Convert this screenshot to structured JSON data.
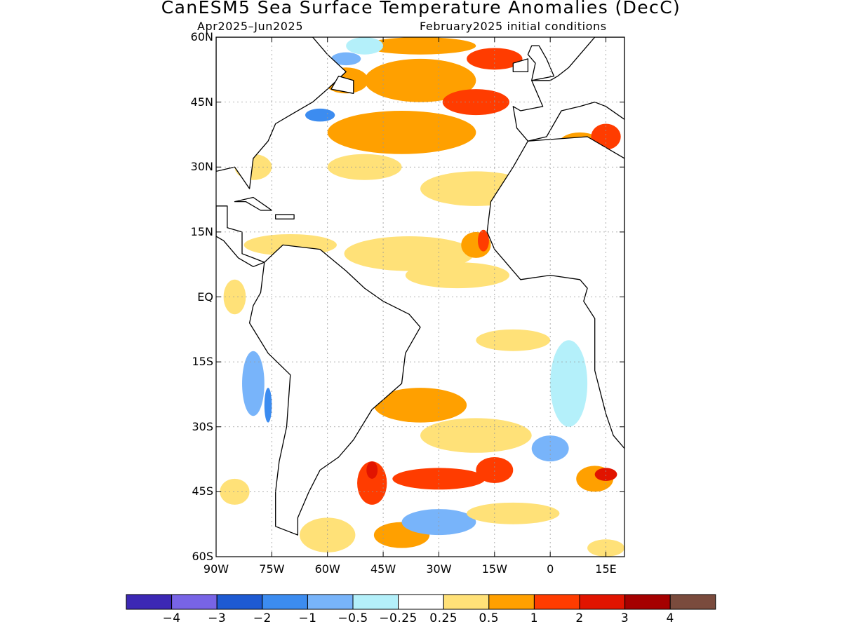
{
  "title": "CanESM5 Sea Surface Temperature Anomalies (DecC)",
  "subtitle_left": "Apr2025–Jun2025",
  "subtitle_right": "February2025 initial conditions",
  "map": {
    "lon_range": [
      -90,
      20
    ],
    "lat_range": [
      -60,
      60
    ],
    "lat_ticks": [
      {
        "value": 60,
        "label": "60N"
      },
      {
        "value": 45,
        "label": "45N"
      },
      {
        "value": 30,
        "label": "30N"
      },
      {
        "value": 15,
        "label": "15N"
      },
      {
        "value": 0,
        "label": "EQ"
      },
      {
        "value": -15,
        "label": "15S"
      },
      {
        "value": -30,
        "label": "30S"
      },
      {
        "value": -45,
        "label": "45S"
      },
      {
        "value": -60,
        "label": "60S"
      }
    ],
    "lon_ticks": [
      {
        "value": -90,
        "label": "90W"
      },
      {
        "value": -75,
        "label": "75W"
      },
      {
        "value": -60,
        "label": "60W"
      },
      {
        "value": -45,
        "label": "45W"
      },
      {
        "value": -30,
        "label": "30W"
      },
      {
        "value": -15,
        "label": "15W"
      },
      {
        "value": 0,
        "label": "0"
      },
      {
        "value": 15,
        "label": "15E"
      }
    ],
    "gridlines": true,
    "land_color": "#ffffff",
    "coast_color": "#000000"
  },
  "colorbar": {
    "colors": [
      "#3c28b4",
      "#7864e6",
      "#1e5ad2",
      "#3c8cf0",
      "#78b4fa",
      "#b4f0fa",
      "#ffffff",
      "#ffe178",
      "#ffa000",
      "#ff3c00",
      "#e11400",
      "#a50000",
      "#7a4b3d"
    ],
    "labels": [
      "−4",
      "−3",
      "−2",
      "−1",
      "−0.5",
      "−0.25",
      "0.25",
      "0.5",
      "1",
      "2",
      "3",
      "4"
    ]
  },
  "anomalies": [
    {
      "lon": -55,
      "lat": 50,
      "w": 12,
      "h": 6,
      "level": 8
    },
    {
      "lon": -35,
      "lat": 50,
      "w": 30,
      "h": 10,
      "level": 8
    },
    {
      "lon": -20,
      "lat": 45,
      "w": 18,
      "h": 6,
      "level": 9
    },
    {
      "lon": -40,
      "lat": 38,
      "w": 40,
      "h": 10,
      "level": 8
    },
    {
      "lon": -20,
      "lat": 25,
      "w": 30,
      "h": 8,
      "level": 7
    },
    {
      "lon": -50,
      "lat": 30,
      "w": 20,
      "h": 6,
      "level": 7
    },
    {
      "lon": -62,
      "lat": 42,
      "w": 8,
      "h": 3,
      "level": 3
    },
    {
      "lon": -55,
      "lat": 55,
      "w": 8,
      "h": 3,
      "level": 4
    },
    {
      "lon": -35,
      "lat": 58,
      "w": 30,
      "h": 4,
      "level": 8
    },
    {
      "lon": -38,
      "lat": 10,
      "w": 35,
      "h": 8,
      "level": 7
    },
    {
      "lon": -25,
      "lat": 5,
      "w": 28,
      "h": 6,
      "level": 7
    },
    {
      "lon": -20,
      "lat": 12,
      "w": 8,
      "h": 6,
      "level": 8
    },
    {
      "lon": -18,
      "lat": 13,
      "w": 3,
      "h": 5,
      "level": 9
    },
    {
      "lon": -10,
      "lat": -10,
      "w": 20,
      "h": 5,
      "level": 7
    },
    {
      "lon": -35,
      "lat": -25,
      "w": 25,
      "h": 8,
      "level": 8
    },
    {
      "lon": -20,
      "lat": -32,
      "w": 30,
      "h": 8,
      "level": 7
    },
    {
      "lon": -30,
      "lat": -42,
      "w": 25,
      "h": 5,
      "level": 9
    },
    {
      "lon": -48,
      "lat": -43,
      "w": 8,
      "h": 10,
      "level": 9
    },
    {
      "lon": -48,
      "lat": -40,
      "w": 3,
      "h": 4,
      "level": 10
    },
    {
      "lon": -15,
      "lat": -40,
      "w": 10,
      "h": 6,
      "level": 9
    },
    {
      "lon": 12,
      "lat": -42,
      "w": 10,
      "h": 6,
      "level": 8
    },
    {
      "lon": 15,
      "lat": -41,
      "w": 6,
      "h": 3,
      "level": 10
    },
    {
      "lon": -40,
      "lat": -55,
      "w": 15,
      "h": 6,
      "level": 8
    },
    {
      "lon": -30,
      "lat": -52,
      "w": 20,
      "h": 6,
      "level": 4
    },
    {
      "lon": 0,
      "lat": -35,
      "w": 10,
      "h": 6,
      "level": 4
    },
    {
      "lon": -80,
      "lat": -20,
      "w": 6,
      "h": 15,
      "level": 4
    },
    {
      "lon": -76,
      "lat": -25,
      "w": 2,
      "h": 8,
      "level": 3
    },
    {
      "lon": -85,
      "lat": -45,
      "w": 8,
      "h": 6,
      "level": 7
    },
    {
      "lon": 8,
      "lat": 35,
      "w": 12,
      "h": 6,
      "level": 8
    },
    {
      "lon": 15,
      "lat": 37,
      "w": 8,
      "h": 6,
      "level": 9
    },
    {
      "lon": -80,
      "lat": 30,
      "w": 10,
      "h": 6,
      "level": 7
    },
    {
      "lon": -70,
      "lat": 12,
      "w": 25,
      "h": 5,
      "level": 7
    },
    {
      "lon": -85,
      "lat": 0,
      "w": 6,
      "h": 8,
      "level": 7
    },
    {
      "lon": 5,
      "lat": -20,
      "w": 10,
      "h": 20,
      "level": 5
    },
    {
      "lon": -10,
      "lat": -50,
      "w": 25,
      "h": 5,
      "level": 7
    },
    {
      "lon": -50,
      "lat": 58,
      "w": 10,
      "h": 4,
      "level": 5
    },
    {
      "lon": -15,
      "lat": 55,
      "w": 15,
      "h": 5,
      "level": 9
    },
    {
      "lon": -60,
      "lat": -55,
      "w": 15,
      "h": 8,
      "level": 7
    },
    {
      "lon": 15,
      "lat": -58,
      "w": 10,
      "h": 4,
      "level": 7
    }
  ],
  "land": [
    {
      "name": "north-america",
      "points": [
        [
          -90,
          60
        ],
        [
          -64,
          60
        ],
        [
          -60,
          56
        ],
        [
          -55,
          52
        ],
        [
          -60,
          48
        ],
        [
          -64,
          45
        ],
        [
          -70,
          42
        ],
        [
          -74,
          40
        ],
        [
          -76,
          36
        ],
        [
          -80,
          32
        ],
        [
          -81,
          25
        ],
        [
          -85,
          30
        ],
        [
          -90,
          29
        ]
      ]
    },
    {
      "name": "central-america",
      "points": [
        [
          -90,
          21
        ],
        [
          -87,
          21
        ],
        [
          -87,
          16
        ],
        [
          -83,
          15
        ],
        [
          -83,
          10
        ],
        [
          -80,
          9
        ],
        [
          -77,
          8
        ],
        [
          -80,
          7
        ],
        [
          -84,
          9
        ],
        [
          -88,
          13
        ],
        [
          -90,
          14
        ]
      ]
    },
    {
      "name": "south-america",
      "points": [
        [
          -77,
          8
        ],
        [
          -72,
          12
        ],
        [
          -62,
          11
        ],
        [
          -55,
          6
        ],
        [
          -50,
          2
        ],
        [
          -45,
          -1
        ],
        [
          -38,
          -4
        ],
        [
          -35,
          -7
        ],
        [
          -39,
          -13
        ],
        [
          -40,
          -20
        ],
        [
          -44,
          -23
        ],
        [
          -48,
          -26
        ],
        [
          -53,
          -33
        ],
        [
          -57,
          -37
        ],
        [
          -62,
          -40
        ],
        [
          -65,
          -45
        ],
        [
          -68,
          -51
        ],
        [
          -68,
          -55
        ],
        [
          -74,
          -53
        ],
        [
          -74,
          -45
        ],
        [
          -73,
          -38
        ],
        [
          -71,
          -30
        ],
        [
          -70,
          -18
        ],
        [
          -76,
          -13
        ],
        [
          -81,
          -6
        ],
        [
          -80,
          -2
        ],
        [
          -78,
          1
        ],
        [
          -77,
          8
        ]
      ]
    },
    {
      "name": "africa",
      "points": [
        [
          20,
          32
        ],
        [
          10,
          37
        ],
        [
          -6,
          36
        ],
        [
          -10,
          30
        ],
        [
          -16,
          22
        ],
        [
          -17,
          15
        ],
        [
          -15,
          11
        ],
        [
          -12,
          8
        ],
        [
          -8,
          4
        ],
        [
          0,
          5
        ],
        [
          8,
          4
        ],
        [
          10,
          2
        ],
        [
          9,
          -1
        ],
        [
          12,
          -5
        ],
        [
          12,
          -10
        ],
        [
          12,
          -17
        ],
        [
          15,
          -27
        ],
        [
          17,
          -32
        ],
        [
          20,
          -35
        ]
      ]
    },
    {
      "name": "europe",
      "points": [
        [
          -10,
          44
        ],
        [
          -8,
          43
        ],
        [
          -2,
          44
        ],
        [
          -4,
          48
        ],
        [
          -5,
          50
        ],
        [
          0,
          50
        ],
        [
          2,
          51
        ],
        [
          5,
          53
        ],
        [
          8,
          56
        ],
        [
          10,
          58
        ],
        [
          12,
          60
        ],
        [
          20,
          60
        ],
        [
          20,
          41
        ],
        [
          15,
          44
        ],
        [
          12,
          45
        ],
        [
          8,
          44
        ],
        [
          3,
          43
        ],
        [
          -1,
          37
        ],
        [
          -6,
          36
        ],
        [
          -9,
          39
        ]
      ]
    },
    {
      "name": "great-britain",
      "points": [
        [
          -5,
          50
        ],
        [
          1,
          51
        ],
        [
          -1,
          55
        ],
        [
          -3,
          58
        ],
        [
          -5,
          58
        ],
        [
          -6,
          56
        ],
        [
          -4,
          54
        ]
      ]
    },
    {
      "name": "ireland",
      "points": [
        [
          -10,
          52
        ],
        [
          -6,
          52
        ],
        [
          -6,
          55
        ],
        [
          -10,
          54
        ]
      ]
    },
    {
      "name": "cuba",
      "points": [
        [
          -85,
          22
        ],
        [
          -80,
          23
        ],
        [
          -75,
          20
        ],
        [
          -78,
          20
        ],
        [
          -82,
          22
        ]
      ]
    },
    {
      "name": "hispaniola",
      "points": [
        [
          -74,
          19
        ],
        [
          -69,
          19
        ],
        [
          -69,
          18
        ],
        [
          -74,
          18
        ]
      ]
    },
    {
      "name": "newfoundland",
      "points": [
        [
          -59,
          48
        ],
        [
          -53,
          47
        ],
        [
          -53,
          50
        ],
        [
          -57,
          51
        ]
      ]
    }
  ]
}
